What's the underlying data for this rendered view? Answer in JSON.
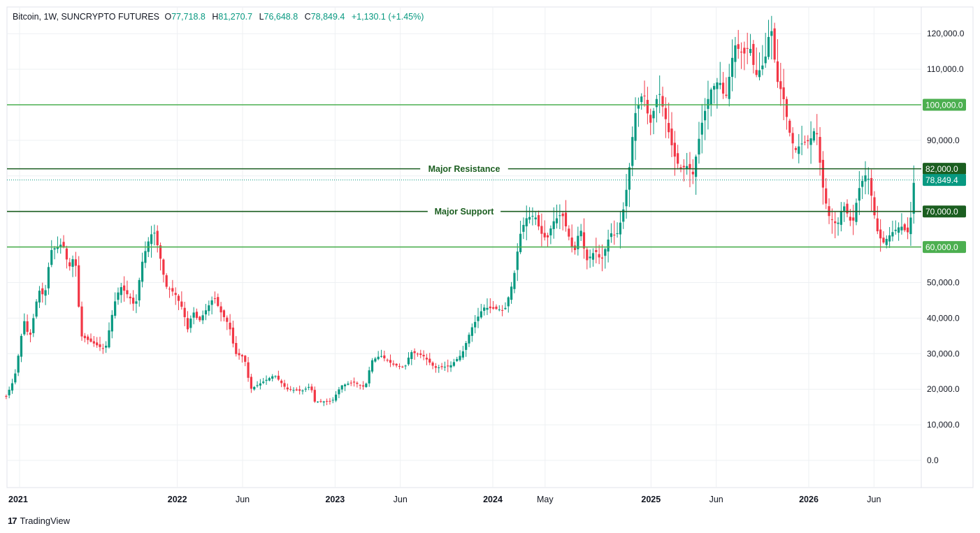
{
  "header": {
    "symbol": "Bitcoin, 1W, SUNCRYPTO FUTURES",
    "open_label": "O",
    "open": "77,718.8",
    "high_label": "H",
    "high": "81,270.7",
    "low_label": "L",
    "low": "76,648.8",
    "close_label": "C",
    "close": "78,849.4",
    "change": "+1,130.1 (+1.45%)"
  },
  "brand": {
    "logo": "17",
    "name": "TradingView"
  },
  "colors": {
    "up": "#089981",
    "down": "#f23645",
    "level_light": "#4caf50",
    "level_dark": "#1b5e20",
    "grid": "#eef0f3",
    "axis_text": "#131722",
    "price_badge": "#089981"
  },
  "chart_data": {
    "type": "candlestick",
    "timeframe": "1W",
    "ylim": [
      -5000,
      127000
    ],
    "y_ticks": [
      0,
      10000,
      20000,
      30000,
      40000,
      50000,
      60000,
      70000,
      80000,
      90000,
      100000,
      110000,
      120000
    ],
    "y_tick_labels": [
      "0.0",
      "10,000.0",
      "20,000.0",
      "30,000.0",
      "40,000.0",
      "50,000.0",
      "60,000.0",
      "70,000.0",
      "80,000.0",
      "90,000.0",
      "100,000.0",
      "110,000.0",
      "120,000.0"
    ],
    "x_tick_labels": [
      {
        "label": "2021",
        "date": "2021-01-01",
        "bold": true
      },
      {
        "label": "2022",
        "date": "2022-01-01",
        "bold": true
      },
      {
        "label": "Jun",
        "date": "2022-06-01",
        "bold": false
      },
      {
        "label": "2023",
        "date": "2023-01-01",
        "bold": true
      },
      {
        "label": "Jun",
        "date": "2023-06-01",
        "bold": false
      },
      {
        "label": "2024",
        "date": "2024-01-01",
        "bold": true
      },
      {
        "label": "May",
        "date": "2024-05-01",
        "bold": false
      },
      {
        "label": "2025",
        "date": "2025-01-01",
        "bold": true
      },
      {
        "label": "Jun",
        "date": "2025-06-01",
        "bold": false
      },
      {
        "label": "2026",
        "date": "2026-01-01",
        "bold": true
      },
      {
        "label": "Jun",
        "date": "2026-06-01",
        "bold": false
      }
    ],
    "horizontal_levels": [
      {
        "price": 100000,
        "label": "100,000.0",
        "style": "light",
        "annotation": ""
      },
      {
        "price": 82000,
        "label": "82,000.0",
        "style": "dark",
        "annotation": "Major Resistance"
      },
      {
        "price": 70000,
        "label": "70,000.0",
        "style": "dark",
        "annotation": "Major Support"
      },
      {
        "price": 60000,
        "label": "60,000.0",
        "style": "light",
        "annotation": ""
      }
    ],
    "last_price": {
      "price": 78849.4,
      "label": "78,849.4"
    },
    "close_path": [
      [
        "2020-12-01",
        18000
      ],
      [
        "2020-12-20",
        23000
      ],
      [
        "2021-01-03",
        33000
      ],
      [
        "2021-01-10",
        40000
      ],
      [
        "2021-01-24",
        34000
      ],
      [
        "2021-02-14",
        48000
      ],
      [
        "2021-02-28",
        46000
      ],
      [
        "2021-03-14",
        59000
      ],
      [
        "2021-04-11",
        61000
      ],
      [
        "2021-04-25",
        54000
      ],
      [
        "2021-05-09",
        58000
      ],
      [
        "2021-05-23",
        35000
      ],
      [
        "2021-06-20",
        33000
      ],
      [
        "2021-07-18",
        31000
      ],
      [
        "2021-08-08",
        44000
      ],
      [
        "2021-08-22",
        49000
      ],
      [
        "2021-09-12",
        46000
      ],
      [
        "2021-09-26",
        43000
      ],
      [
        "2021-10-10",
        55000
      ],
      [
        "2021-10-24",
        61000
      ],
      [
        "2021-11-07",
        65000
      ],
      [
        "2021-11-21",
        58000
      ],
      [
        "2021-12-05",
        49000
      ],
      [
        "2021-12-26",
        47000
      ],
      [
        "2022-01-16",
        42000
      ],
      [
        "2022-01-23",
        36000
      ],
      [
        "2022-02-06",
        42000
      ],
      [
        "2022-02-20",
        39000
      ],
      [
        "2022-03-27",
        46000
      ],
      [
        "2022-04-10",
        42000
      ],
      [
        "2022-05-01",
        38000
      ],
      [
        "2022-05-15",
        30000
      ],
      [
        "2022-06-05",
        29000
      ],
      [
        "2022-06-19",
        20000
      ],
      [
        "2022-07-17",
        22000
      ],
      [
        "2022-08-14",
        24000
      ],
      [
        "2022-09-11",
        20000
      ],
      [
        "2022-10-16",
        19500
      ],
      [
        "2022-11-06",
        21000
      ],
      [
        "2022-11-13",
        16500
      ],
      [
        "2022-12-25",
        16600
      ],
      [
        "2023-01-15",
        21000
      ],
      [
        "2023-02-12",
        22000
      ],
      [
        "2023-03-12",
        20500
      ],
      [
        "2023-03-26",
        28000
      ],
      [
        "2023-04-16",
        29500
      ],
      [
        "2023-05-14",
        27000
      ],
      [
        "2023-06-11",
        26000
      ],
      [
        "2023-06-25",
        30500
      ],
      [
        "2023-07-23",
        29500
      ],
      [
        "2023-08-20",
        26000
      ],
      [
        "2023-09-24",
        26500
      ],
      [
        "2023-10-22",
        30000
      ],
      [
        "2023-11-12",
        37000
      ],
      [
        "2023-12-10",
        43000
      ],
      [
        "2024-01-14",
        42500
      ],
      [
        "2024-01-28",
        42000
      ],
      [
        "2024-02-18",
        51000
      ],
      [
        "2024-03-03",
        63000
      ],
      [
        "2024-03-17",
        68000
      ],
      [
        "2024-04-07",
        69000
      ],
      [
        "2024-04-21",
        64000
      ],
      [
        "2024-05-05",
        62000
      ],
      [
        "2024-05-19",
        67000
      ],
      [
        "2024-06-09",
        69500
      ],
      [
        "2024-07-07",
        58000
      ],
      [
        "2024-07-21",
        66000
      ],
      [
        "2024-08-04",
        56000
      ],
      [
        "2024-08-25",
        59000
      ],
      [
        "2024-09-08",
        56000
      ],
      [
        "2024-09-29",
        64000
      ],
      [
        "2024-10-13",
        63000
      ],
      [
        "2024-10-27",
        69000
      ],
      [
        "2024-11-10",
        80000
      ],
      [
        "2024-11-24",
        97000
      ],
      [
        "2024-12-15",
        104000
      ],
      [
        "2024-12-29",
        94000
      ],
      [
        "2025-01-19",
        104000
      ],
      [
        "2025-02-02",
        97000
      ],
      [
        "2025-02-23",
        86000
      ],
      [
        "2025-03-09",
        82000
      ],
      [
        "2025-03-30",
        83000
      ],
      [
        "2025-04-06",
        79000
      ],
      [
        "2025-04-27",
        94000
      ],
      [
        "2025-05-18",
        104000
      ],
      [
        "2025-06-08",
        107000
      ],
      [
        "2025-06-22",
        101000
      ],
      [
        "2025-07-13",
        117000
      ],
      [
        "2025-08-03",
        114000
      ],
      [
        "2025-08-17",
        117000
      ],
      [
        "2025-08-31",
        108000
      ],
      [
        "2025-09-21",
        112000
      ],
      [
        "2025-10-05",
        123000
      ],
      [
        "2025-10-19",
        107000
      ],
      [
        "2025-11-02",
        103000
      ],
      [
        "2025-11-16",
        93000
      ],
      [
        "2025-11-30",
        87000
      ],
      [
        "2025-12-14",
        89000
      ],
      [
        "2026-01-04",
        90000
      ],
      [
        "2026-01-18",
        94000
      ],
      [
        "2026-02-01",
        78000
      ],
      [
        "2026-02-15",
        69000
      ],
      [
        "2026-03-08",
        66000
      ],
      [
        "2026-03-22",
        72000
      ],
      [
        "2026-04-12",
        66000
      ],
      [
        "2026-04-26",
        76000
      ],
      [
        "2026-05-10",
        80000
      ],
      [
        "2026-05-17",
        80500
      ],
      [
        "2026-05-24",
        76000
      ],
      [
        "2026-06-07",
        65000
      ],
      [
        "2026-06-21",
        61000
      ],
      [
        "2026-07-12",
        64000
      ],
      [
        "2026-08-02",
        66000
      ],
      [
        "2026-08-16",
        64000
      ],
      [
        "2026-08-23",
        64500
      ],
      [
        "2026-08-30",
        77719
      ],
      [
        "2026-09-06",
        78849.4
      ]
    ]
  }
}
